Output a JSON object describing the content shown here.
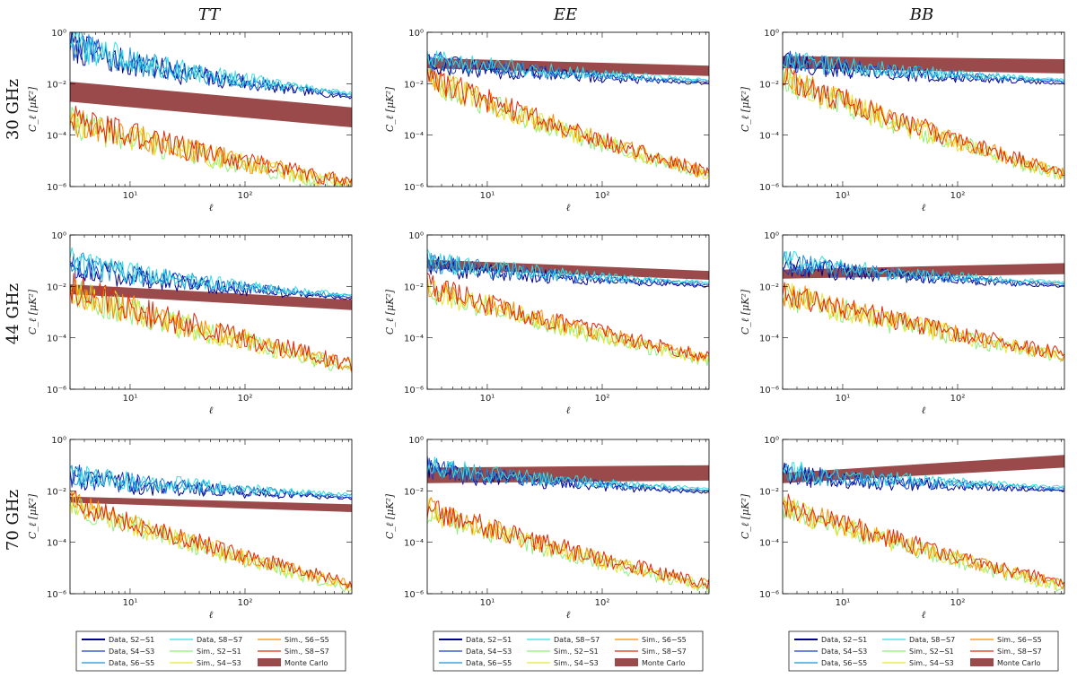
{
  "figure": {
    "column_titles": [
      "TT",
      "EE",
      "BB"
    ],
    "row_titles": [
      "30 GHz",
      "44 GHz",
      "70 GHz"
    ],
    "xlabel": "ℓ",
    "ylabel": "C_ℓ [μK²]",
    "x_tick_labels": [
      "10¹",
      "10²"
    ],
    "y_tick_labels": [
      "10⁻⁶",
      "10⁻⁴",
      "10⁻²",
      "10⁰"
    ]
  },
  "legend": {
    "entries": [
      {
        "label": "Data, S2−S1",
        "color": "#00008b",
        "kind": "line"
      },
      {
        "label": "Data, S4−S3",
        "color": "#1a3cc8",
        "kind": "line"
      },
      {
        "label": "Data, S6−S5",
        "color": "#1e90d8",
        "kind": "line"
      },
      {
        "label": "Data, S8−S7",
        "color": "#35e0e0",
        "kind": "line"
      },
      {
        "label": "Sim., S2−S1",
        "color": "#8ef07a",
        "kind": "line"
      },
      {
        "label": "Sim., S4−S3",
        "color": "#e8e830",
        "kind": "line"
      },
      {
        "label": "Sim., S6−S5",
        "color": "#ff8c00",
        "kind": "line"
      },
      {
        "label": "Sim., S8−S7",
        "color": "#dd2a10",
        "kind": "line"
      },
      {
        "label": "Monte Carlo",
        "color": "#9a4a4a",
        "kind": "band"
      }
    ]
  },
  "chart_data": [
    {
      "type": "line",
      "panel": "30 GHz TT",
      "xscale": "log",
      "yscale": "log",
      "xlim": [
        3,
        850
      ],
      "ylim": [
        1e-06,
        1
      ],
      "series": [
        {
          "name": "Data",
          "y_start": 0.5,
          "y_end": 0.0035,
          "noise": 0.6
        },
        {
          "name": "Sim.",
          "y_start": 0.0004,
          "y_end": 1.2e-06,
          "noise": 0.6
        }
      ],
      "band": {
        "lower_start": 0.002,
        "upper_start": 0.012,
        "lower_end": 0.0002,
        "upper_end": 0.0012
      }
    },
    {
      "type": "line",
      "panel": "30 GHz EE",
      "xscale": "log",
      "yscale": "log",
      "xlim": [
        3,
        850
      ],
      "ylim": [
        1e-06,
        1
      ],
      "series": [
        {
          "name": "Data",
          "y_start": 0.1,
          "y_end": 0.012,
          "noise": 0.4
        },
        {
          "name": "Sim.",
          "y_start": 0.02,
          "y_end": 3e-06,
          "noise": 0.55
        }
      ],
      "band": {
        "lower_start": 0.04,
        "upper_start": 0.1,
        "lower_end": 0.02,
        "upper_end": 0.05
      }
    },
    {
      "type": "line",
      "panel": "30 GHz BB",
      "xscale": "log",
      "yscale": "log",
      "xlim": [
        3,
        850
      ],
      "ylim": [
        1e-06,
        1
      ],
      "series": [
        {
          "name": "Data",
          "y_start": 0.1,
          "y_end": 0.012,
          "noise": 0.4
        },
        {
          "name": "Sim.",
          "y_start": 0.02,
          "y_end": 3e-06,
          "noise": 0.55
        }
      ],
      "band": {
        "lower_start": 0.04,
        "upper_start": 0.12,
        "lower_end": 0.025,
        "upper_end": 0.09
      }
    },
    {
      "type": "line",
      "panel": "44 GHz TT",
      "xscale": "log",
      "yscale": "log",
      "xlim": [
        3,
        850
      ],
      "ylim": [
        1e-06,
        1
      ],
      "series": [
        {
          "name": "Data",
          "y_start": 0.1,
          "y_end": 0.004,
          "noise": 0.5
        },
        {
          "name": "Sim.",
          "y_start": 0.008,
          "y_end": 8e-06,
          "noise": 0.65
        }
      ],
      "band": {
        "lower_start": 0.005,
        "upper_start": 0.012,
        "lower_end": 0.0012,
        "upper_end": 0.003
      }
    },
    {
      "type": "line",
      "panel": "44 GHz EE",
      "xscale": "log",
      "yscale": "log",
      "xlim": [
        3,
        850
      ],
      "ylim": [
        1e-06,
        1
      ],
      "series": [
        {
          "name": "Data",
          "y_start": 0.1,
          "y_end": 0.012,
          "noise": 0.4
        },
        {
          "name": "Sim.",
          "y_start": 0.01,
          "y_end": 1.5e-05,
          "noise": 0.5
        }
      ],
      "band": {
        "lower_start": 0.05,
        "upper_start": 0.11,
        "lower_end": 0.018,
        "upper_end": 0.04
      }
    },
    {
      "type": "line",
      "panel": "44 GHz BB",
      "xscale": "log",
      "yscale": "log",
      "xlim": [
        3,
        850
      ],
      "ylim": [
        1e-06,
        1
      ],
      "series": [
        {
          "name": "Data",
          "y_start": 0.1,
          "y_end": 0.012,
          "noise": 0.4
        },
        {
          "name": "Sim.",
          "y_start": 0.006,
          "y_end": 2e-05,
          "noise": 0.55
        }
      ],
      "band": {
        "lower_start": 0.02,
        "upper_start": 0.045,
        "lower_end": 0.03,
        "upper_end": 0.08
      }
    },
    {
      "type": "line",
      "panel": "70 GHz TT",
      "xscale": "log",
      "yscale": "log",
      "xlim": [
        3,
        850
      ],
      "ylim": [
        1e-06,
        1
      ],
      "series": [
        {
          "name": "Data",
          "y_start": 0.05,
          "y_end": 0.006,
          "noise": 0.45
        },
        {
          "name": "Sim.",
          "y_start": 0.004,
          "y_end": 2e-06,
          "noise": 0.5
        }
      ],
      "band": {
        "lower_start": 0.0035,
        "upper_start": 0.006,
        "lower_end": 0.0015,
        "upper_end": 0.003
      }
    },
    {
      "type": "line",
      "panel": "70 GHz EE",
      "xscale": "log",
      "yscale": "log",
      "xlim": [
        3,
        850
      ],
      "ylim": [
        1e-06,
        1
      ],
      "series": [
        {
          "name": "Data",
          "y_start": 0.1,
          "y_end": 0.01,
          "noise": 0.4
        },
        {
          "name": "Sim.",
          "y_start": 0.002,
          "y_end": 2e-06,
          "noise": 0.5
        }
      ],
      "band": {
        "lower_start": 0.02,
        "upper_start": 0.08,
        "lower_end": 0.025,
        "upper_end": 0.1
      }
    },
    {
      "type": "line",
      "panel": "70 GHz BB",
      "xscale": "log",
      "yscale": "log",
      "xlim": [
        3,
        850
      ],
      "ylim": [
        1e-06,
        1
      ],
      "series": [
        {
          "name": "Data",
          "y_start": 0.06,
          "y_end": 0.012,
          "noise": 0.4
        },
        {
          "name": "Sim.",
          "y_start": 0.003,
          "y_end": 2e-06,
          "noise": 0.5
        }
      ],
      "band": {
        "lower_start": 0.02,
        "upper_start": 0.05,
        "lower_end": 0.08,
        "upper_end": 0.25
      }
    }
  ]
}
